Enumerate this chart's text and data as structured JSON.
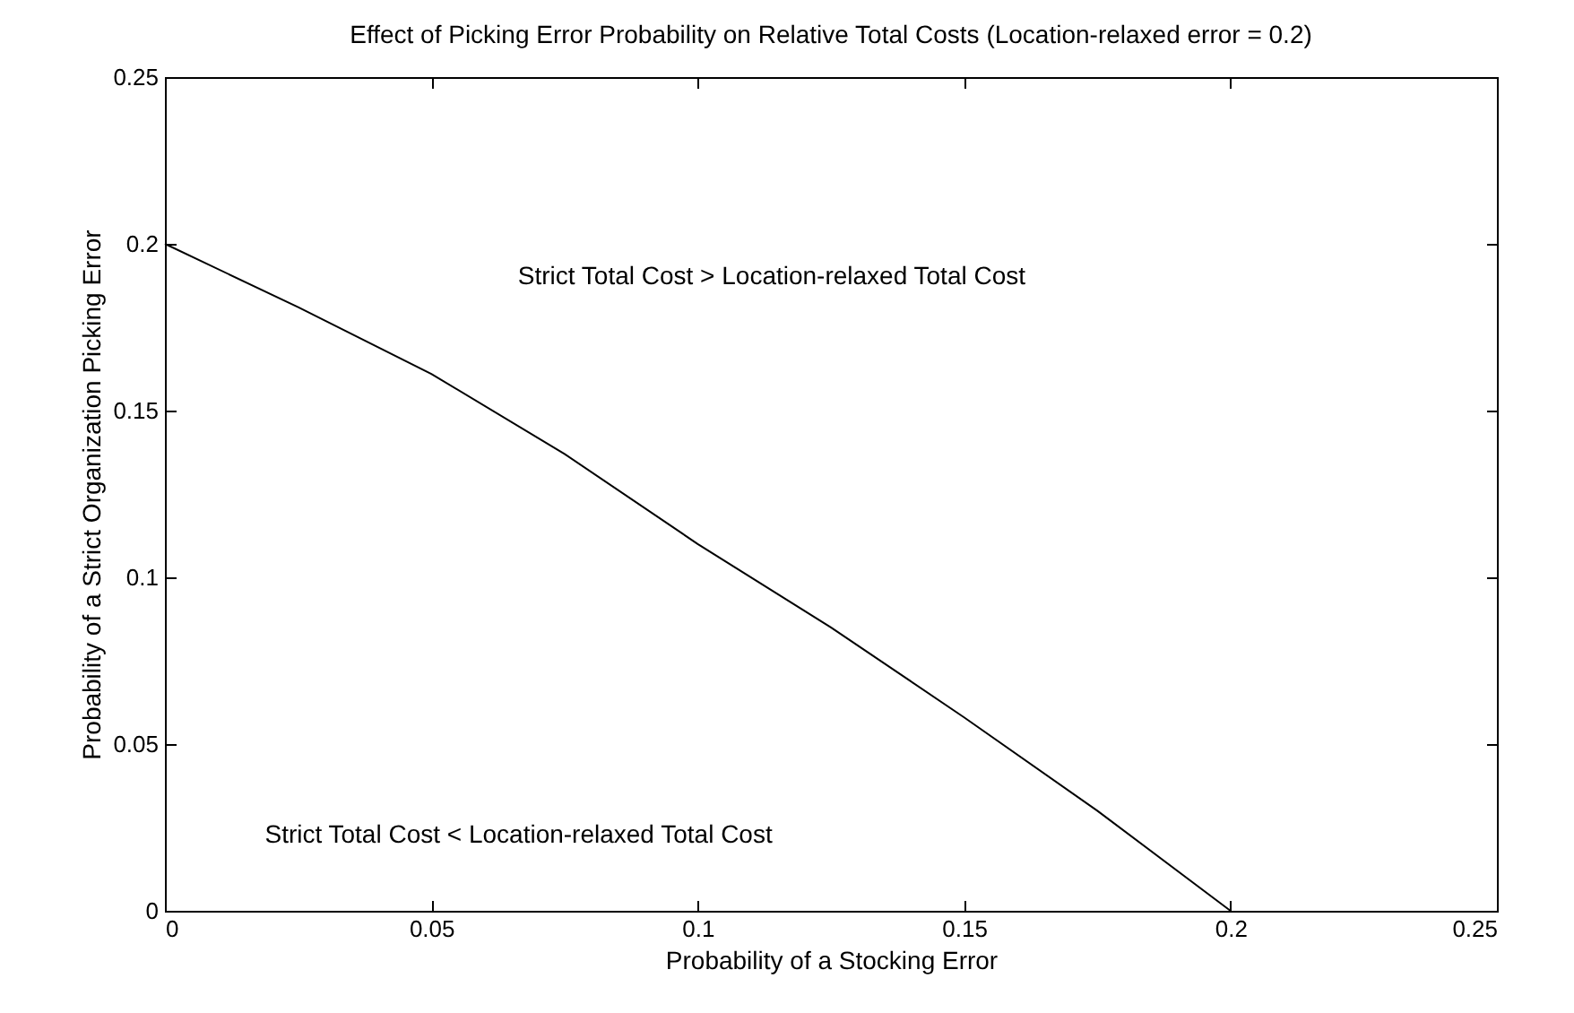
{
  "chart_data": {
    "type": "line",
    "title": "Effect of Picking Error Probability on Relative Total Costs (Location-relaxed error = 0.2)",
    "xlabel": "Probability of a Stocking Error",
    "ylabel": "Probability of a Strict Organization Picking Error",
    "x": [
      0,
      0.025,
      0.05,
      0.075,
      0.1,
      0.125,
      0.15,
      0.175,
      0.2
    ],
    "series": [
      {
        "color": "#000000",
        "values": [
          0.2,
          0.181,
          0.161,
          0.137,
          0.11,
          0.085,
          0.058,
          0.03,
          0
        ]
      }
    ],
    "xlim": [
      0,
      0.25
    ],
    "ylim": [
      0,
      0.25
    ],
    "xticks": [
      0,
      0.05,
      0.1,
      0.15,
      0.2,
      0.25
    ],
    "yticks": [
      0,
      0.05,
      0.1,
      0.15,
      0.2,
      0.25
    ],
    "grid": false,
    "marker": "none",
    "line_style": "solid",
    "annotations": [
      "Strict Total Cost > Location-relaxed Total Cost",
      "Strict Total Cost < Location-relaxed Total Cost"
    ]
  }
}
